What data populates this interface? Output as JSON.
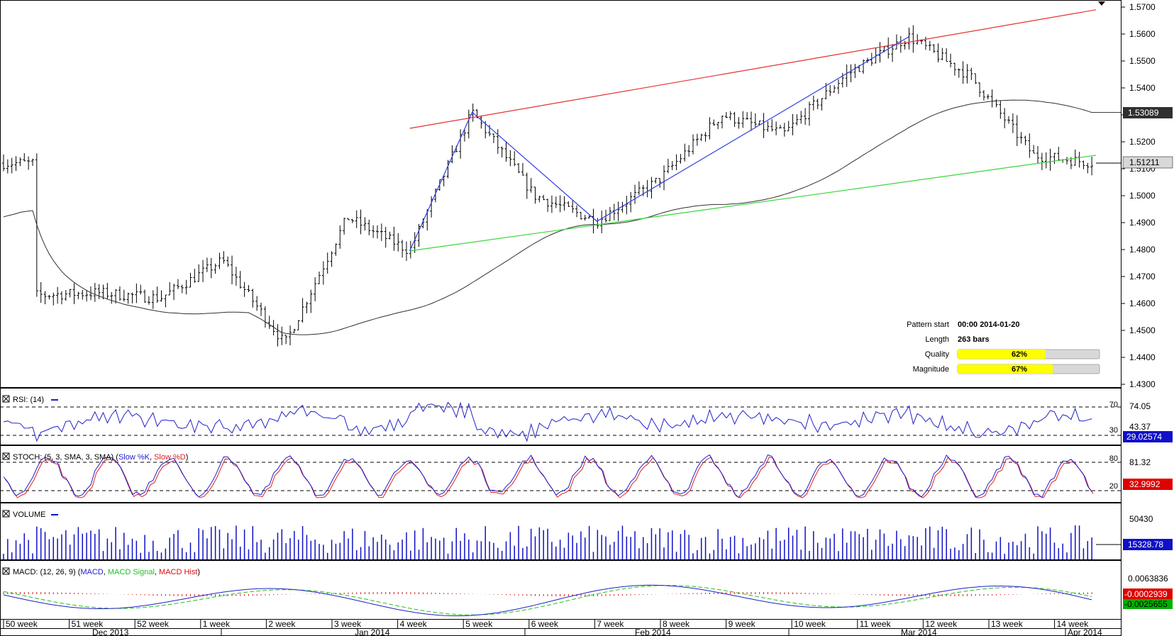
{
  "colors": {
    "price_bar": "#000000",
    "sma": "#303030",
    "resistance": "#e53030",
    "support": "#3ad43a",
    "zigzag": "#2f3fe0",
    "rsi": "#2020c8",
    "stoch_k": "#2020d0",
    "stoch_d": "#e02020",
    "volume": "#1010c8",
    "macd": "#2020c8",
    "macd_signal": "#20c020",
    "macd_hist": "#d01010",
    "quality_fill": "#ffff00",
    "badge_blue": "#1010c8",
    "badge_red": "#e00000",
    "badge_green": "#00b000"
  },
  "main": {
    "y_ticks": [
      "1.5700",
      "1.5600",
      "1.5500",
      "1.5400",
      "1.5300",
      "1.5200",
      "1.5100",
      "1.5000",
      "1.4900",
      "1.4800",
      "1.4700",
      "1.4600",
      "1.4500",
      "1.4400",
      "1.4300"
    ],
    "price_badge": "1.53089",
    "last_price_badge": "1.51211",
    "pattern": {
      "start_label": "Pattern start",
      "start_value": "00:00 2014-01-20",
      "length_label": "Length",
      "length_value": "263 bars",
      "quality_label": "Quality",
      "quality_value": "62%",
      "quality": 0.62,
      "magnitude_label": "Magnitude",
      "magnitude_value": "67%",
      "magnitude": 0.67
    }
  },
  "rsi": {
    "title": "RSI: (14)",
    "level_70": "70",
    "level_30": "30",
    "tick_top": "74.05",
    "tick_mid": "43.37",
    "badge": "29.02574"
  },
  "stoch": {
    "title_prefix": "STOCH: (5, 3, SMA, 3, SMA) (",
    "k_label": "Slow %K",
    "sep": ", ",
    "d_label": "Slow %D",
    "title_suffix": ")",
    "level_80": "80",
    "level_20": "20",
    "tick_top": "81.32",
    "badge": "32.9992"
  },
  "volume": {
    "title": "VOLUME",
    "tick_top": "50430",
    "badge": "15328.78"
  },
  "macd": {
    "title_prefix": "MACD: (12, 26, 9) (",
    "macd_label": "MACD",
    "sep": ", ",
    "signal_label": "MACD Signal",
    "hist_label": "MACD Hist",
    "title_suffix": ")",
    "tick_top": "0.0063836",
    "badge_red": "-0.0002939",
    "badge_green": "-0.0025655"
  },
  "x_axis": {
    "weeks": [
      "50 week",
      "51 week",
      "52 week",
      "1 week",
      "2 week",
      "3 week",
      "4 week",
      "5 week",
      "6 week",
      "7 week",
      "8 week",
      "9 week",
      "10 week",
      "11 week",
      "12 week",
      "13 week",
      "14 week"
    ],
    "months": [
      "Dec 2013",
      "Jan 2014",
      "Feb 2014",
      "Mar 2014",
      "Apr 2014"
    ]
  },
  "chart_data": {
    "type": "ohlc",
    "title": "",
    "xlabel": "",
    "ylabel": "",
    "ylim": [
      1.425,
      1.575
    ],
    "x_range": [
      "2013-12-09",
      "2014-04-07"
    ],
    "pattern": "ascending channel",
    "key_points": [
      {
        "label": "pattern start low",
        "date": "2014-01-20",
        "price": 1.4795
      },
      {
        "label": "swing high",
        "date": "2014-01-27",
        "price": 1.531
      },
      {
        "label": "swing low",
        "date": "2014-02-10",
        "price": 1.4905
      },
      {
        "label": "channel high",
        "date": "2014-03-17",
        "price": 1.559
      }
    ],
    "price_path": [
      {
        "date": "2013-12-09",
        "price": 1.463
      },
      {
        "date": "2013-12-16",
        "price": 1.464
      },
      {
        "date": "2013-12-23",
        "price": 1.462
      },
      {
        "date": "2013-12-30",
        "price": 1.476
      },
      {
        "date": "2014-01-06",
        "price": 1.445
      },
      {
        "date": "2014-01-13",
        "price": 1.492
      },
      {
        "date": "2014-01-20",
        "price": 1.4795
      },
      {
        "date": "2014-01-27",
        "price": 1.531
      },
      {
        "date": "2014-02-03",
        "price": 1.5
      },
      {
        "date": "2014-02-10",
        "price": 1.4905
      },
      {
        "date": "2014-02-17",
        "price": 1.506
      },
      {
        "date": "2014-02-24",
        "price": 1.53
      },
      {
        "date": "2014-03-03",
        "price": 1.523
      },
      {
        "date": "2014-03-10",
        "price": 1.545
      },
      {
        "date": "2014-03-17",
        "price": 1.559
      },
      {
        "date": "2014-03-24",
        "price": 1.544
      },
      {
        "date": "2014-03-31",
        "price": 1.515
      },
      {
        "date": "2014-04-07",
        "price": 1.5121
      }
    ],
    "resistance_line": [
      {
        "date": "2014-01-20",
        "price": 1.525
      },
      {
        "date": "2014-04-07",
        "price": 1.569
      }
    ],
    "support_line": [
      {
        "date": "2014-01-20",
        "price": 1.4795
      },
      {
        "date": "2014-04-07",
        "price": 1.515
      }
    ],
    "sma_last": 1.53089,
    "last_price": 1.51211,
    "series": [
      {
        "name": "RSI",
        "last": 29.02574
      },
      {
        "name": "Slow %K",
        "last": 32.9992
      },
      {
        "name": "VOLUME",
        "last": 15328.78,
        "max": 50430
      },
      {
        "name": "MACD",
        "last": -0.0025655
      },
      {
        "name": "MACD Hist",
        "last": -0.0002939
      }
    ]
  }
}
